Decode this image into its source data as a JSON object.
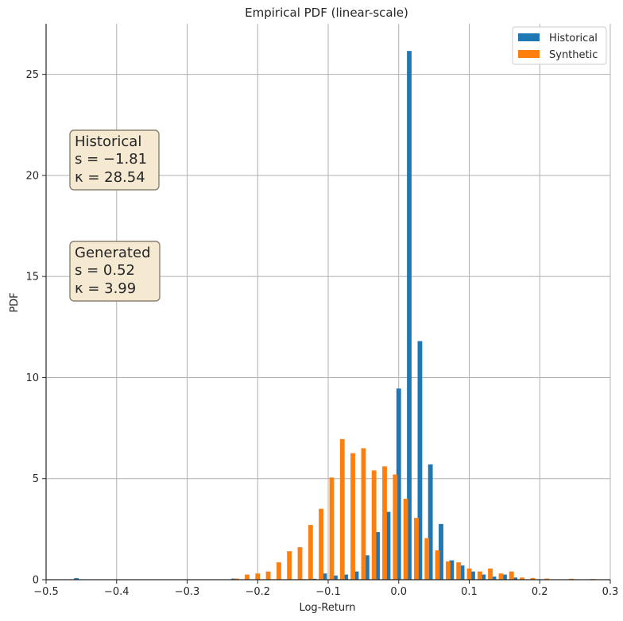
{
  "chart_data": {
    "type": "bar",
    "title": "Empirical PDF (linear-scale)",
    "xlabel": "Log-Return",
    "ylabel": "PDF",
    "xlim": [
      -0.5,
      0.3
    ],
    "ylim": [
      0,
      27.5
    ],
    "xticks": [
      -0.5,
      -0.4,
      -0.3,
      -0.2,
      -0.1,
      0.0,
      0.1,
      0.2,
      0.3
    ],
    "xtick_labels": [
      "−0.5",
      "−0.4",
      "−0.3",
      "−0.2",
      "−0.1",
      "0.0",
      "0.1",
      "0.2",
      "0.3"
    ],
    "yticks": [
      0,
      5,
      10,
      15,
      20,
      25
    ],
    "ytick_labels": [
      "0",
      "5",
      "10",
      "15",
      "20",
      "25"
    ],
    "grid": true,
    "legend_position": "top-right",
    "series": [
      {
        "name": "Historical",
        "color": "#1f77b4",
        "points": [
          [
            -0.457,
            0.07
          ],
          [
            -0.234,
            0.05
          ],
          [
            -0.135,
            0.02
          ],
          [
            -0.12,
            0.04
          ],
          [
            -0.105,
            0.3
          ],
          [
            -0.09,
            0.2
          ],
          [
            -0.075,
            0.25
          ],
          [
            -0.06,
            0.4
          ],
          [
            -0.045,
            1.2
          ],
          [
            -0.03,
            2.35
          ],
          [
            -0.015,
            3.35
          ],
          [
            0.0,
            9.45
          ],
          [
            0.015,
            26.15
          ],
          [
            0.03,
            11.8
          ],
          [
            0.045,
            5.7
          ],
          [
            0.06,
            2.75
          ],
          [
            0.075,
            0.95
          ],
          [
            0.09,
            0.7
          ],
          [
            0.105,
            0.4
          ],
          [
            0.12,
            0.25
          ],
          [
            0.135,
            0.15
          ],
          [
            0.15,
            0.25
          ],
          [
            0.165,
            0.1
          ]
        ]
      },
      {
        "name": "Synthetic",
        "color": "#ff7f0e",
        "points": [
          [
            -0.23,
            0.05
          ],
          [
            -0.215,
            0.25
          ],
          [
            -0.2,
            0.3
          ],
          [
            -0.185,
            0.4
          ],
          [
            -0.17,
            0.85
          ],
          [
            -0.155,
            1.4
          ],
          [
            -0.14,
            1.6
          ],
          [
            -0.125,
            2.7
          ],
          [
            -0.11,
            3.5
          ],
          [
            -0.095,
            5.05
          ],
          [
            -0.08,
            6.95
          ],
          [
            -0.065,
            6.25
          ],
          [
            -0.05,
            6.5
          ],
          [
            -0.035,
            5.4
          ],
          [
            -0.02,
            5.6
          ],
          [
            -0.005,
            5.2
          ],
          [
            0.01,
            4.0
          ],
          [
            0.025,
            3.05
          ],
          [
            0.04,
            2.05
          ],
          [
            0.055,
            1.45
          ],
          [
            0.07,
            0.9
          ],
          [
            0.085,
            0.85
          ],
          [
            0.1,
            0.55
          ],
          [
            0.115,
            0.4
          ],
          [
            0.13,
            0.55
          ],
          [
            0.145,
            0.3
          ],
          [
            0.16,
            0.4
          ],
          [
            0.175,
            0.1
          ],
          [
            0.19,
            0.08
          ],
          [
            0.21,
            0.05
          ],
          [
            0.245,
            0.04
          ],
          [
            0.275,
            0.03
          ]
        ]
      }
    ],
    "annotations": [
      {
        "lines": [
          "Historical",
          "s = −1.81",
          "κ = 28.54"
        ]
      },
      {
        "lines": [
          "Generated",
          "s = 0.52",
          "κ = 3.99"
        ]
      }
    ]
  }
}
